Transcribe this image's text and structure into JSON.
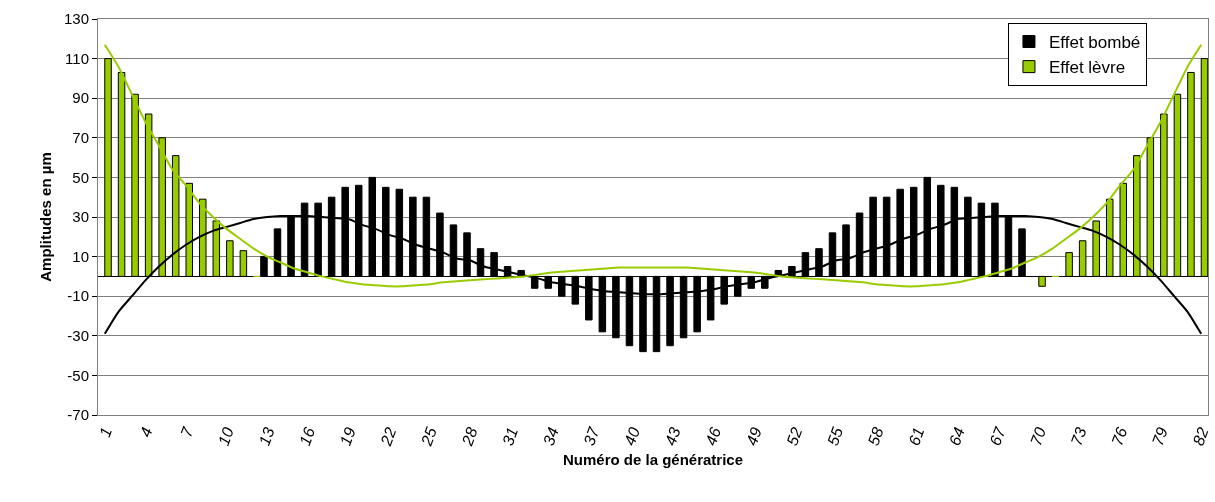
{
  "chart_data": {
    "type": "bar",
    "xlabel": "Numéro de la génératrice",
    "ylabel": "Amplitudes en µm",
    "categories": [
      "1",
      null,
      null,
      "4",
      null,
      null,
      "7",
      null,
      null,
      "10",
      null,
      null,
      "13",
      null,
      null,
      "16",
      null,
      null,
      "19",
      null,
      null,
      "22",
      null,
      null,
      "25",
      null,
      null,
      "28",
      null,
      null,
      "31",
      null,
      null,
      "34",
      null,
      null,
      "37",
      null,
      null,
      "40",
      null,
      null,
      "43",
      null,
      null,
      "46",
      null,
      null,
      "49",
      null,
      null,
      "52",
      null,
      null,
      "55",
      null,
      null,
      "58",
      null,
      null,
      "61",
      null,
      null,
      "64",
      null,
      null,
      "67",
      null,
      null,
      "70",
      null,
      null,
      "73",
      null,
      null,
      "76",
      null,
      null,
      "79",
      null,
      null,
      "82"
    ],
    "series": [
      {
        "name": "Effet bombé",
        "color": "#000000",
        "values": [
          null,
          null,
          null,
          null,
          null,
          null,
          null,
          null,
          null,
          null,
          null,
          null,
          10,
          24,
          30,
          37,
          37,
          40,
          45,
          46,
          50,
          45,
          44,
          40,
          40,
          32,
          26,
          22,
          14,
          12,
          5,
          3,
          -6,
          -6,
          -10,
          -14,
          -22,
          -28,
          -31,
          -35,
          -38,
          -38,
          -35,
          -31,
          -28,
          -22,
          -14,
          -10,
          -6,
          -6,
          3,
          5,
          12,
          14,
          22,
          26,
          32,
          40,
          40,
          44,
          45,
          50,
          46,
          45,
          40,
          37,
          37,
          30,
          24,
          null,
          null,
          null,
          null,
          null,
          null,
          null,
          null,
          null,
          null,
          null,
          null,
          null
        ]
      },
      {
        "name": "Effet lèvre",
        "color": "#99cc00",
        "values": [
          110,
          103,
          92,
          82,
          70,
          61,
          47,
          39,
          28,
          18,
          13,
          0,
          null,
          null,
          null,
          null,
          null,
          null,
          null,
          null,
          null,
          null,
          null,
          null,
          null,
          null,
          null,
          null,
          null,
          null,
          null,
          null,
          null,
          null,
          null,
          null,
          null,
          null,
          null,
          null,
          null,
          null,
          null,
          null,
          null,
          null,
          null,
          null,
          null,
          null,
          null,
          null,
          null,
          null,
          null,
          null,
          null,
          null,
          null,
          null,
          null,
          null,
          null,
          null,
          null,
          null,
          null,
          null,
          null,
          -5,
          0,
          12,
          18,
          28,
          39,
          47,
          61,
          70,
          82,
          92,
          103,
          110
        ]
      },
      {
        "type": "line",
        "color": "#000000",
        "values": [
          -29,
          -18,
          -10,
          -2,
          5,
          11,
          16,
          20,
          23,
          25,
          27,
          29,
          30,
          30.5,
          30.5,
          30.5,
          30,
          29.5,
          29,
          26,
          24,
          21,
          19,
          16,
          14,
          12,
          9,
          8,
          5,
          3.5,
          2,
          0.5,
          -1,
          -3,
          -4,
          -5,
          -6.5,
          -7.5,
          -8,
          -8.5,
          -9,
          -9,
          -8.5,
          -8,
          -7.5,
          -6.5,
          -5,
          -4,
          -3,
          -1,
          0.5,
          2,
          3.5,
          5,
          8,
          9,
          12,
          14,
          16,
          19,
          21,
          24,
          26,
          29,
          29.5,
          30,
          30.5,
          30.5,
          30.5,
          30,
          29,
          27,
          25,
          23,
          20,
          16,
          11,
          5,
          -2,
          -10,
          -18,
          -29
        ]
      },
      {
        "type": "line",
        "color": "#99cc00",
        "values": [
          117,
          106,
          92,
          78,
          66,
          54,
          46,
          37,
          30,
          24,
          19,
          14,
          10,
          7,
          4,
          2,
          0,
          -1.5,
          -3,
          -4,
          -4.5,
          -5,
          -5,
          -4.5,
          -4,
          -3,
          -2.5,
          -2,
          -1.5,
          -1,
          -0.5,
          0,
          1,
          2,
          2.5,
          3,
          3.5,
          4,
          4.5,
          4.5,
          4.5,
          4.5,
          4.5,
          4.5,
          4,
          3.5,
          3,
          2.5,
          2,
          1,
          0,
          -0.5,
          -1,
          -1.5,
          -2,
          -2.5,
          -3,
          -4,
          -4.5,
          -5,
          -5,
          -4.5,
          -4,
          -3,
          -1.5,
          0,
          2,
          4,
          7,
          10,
          14,
          19,
          24,
          30,
          37,
          46,
          54,
          66,
          78,
          92,
          106,
          117
        ]
      }
    ],
    "ylim": [
      -70,
      130
    ],
    "yticks": [
      -70,
      -50,
      -30,
      -10,
      10,
      30,
      50,
      70,
      90,
      110,
      130
    ],
    "grid": "y",
    "legend": "top right"
  }
}
